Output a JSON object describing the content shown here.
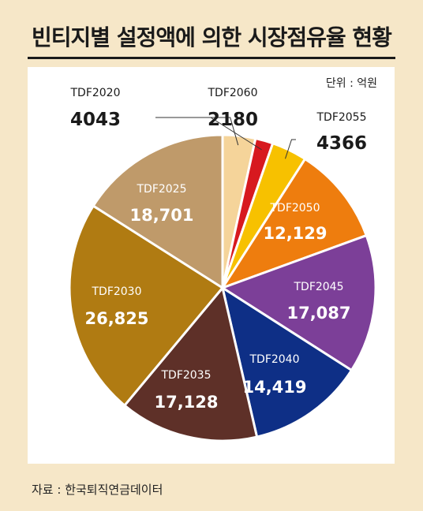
{
  "header": {
    "title": "빈티지별 설정액에 의한 시장점유율 현황"
  },
  "unit_label": "단위 : 억원",
  "source_label": "자료 : 한국퇴직연금데이터",
  "chart_data": {
    "type": "pie",
    "title": "빈티지별 설정액에 의한 시장점유율 현황",
    "unit": "단위 : 억원",
    "slices": [
      {
        "label": "TDF2020",
        "value": 4043,
        "display": "4043",
        "color": "#f5d49a"
      },
      {
        "label": "TDF2060",
        "value": 2180,
        "display": "2180",
        "color": "#d7191f"
      },
      {
        "label": "TDF2055",
        "value": 4366,
        "display": "4366",
        "color": "#f7c100"
      },
      {
        "label": "TDF2050",
        "value": 12129,
        "display": "12,129",
        "color": "#ee7d0e"
      },
      {
        "label": "TDF2045",
        "value": 17087,
        "display": "17,087",
        "color": "#7c3f98"
      },
      {
        "label": "TDF2040",
        "value": 14419,
        "display": "14,419",
        "color": "#0e2f86"
      },
      {
        "label": "TDF2035",
        "value": 17128,
        "display": "17,128",
        "color": "#5e3028"
      },
      {
        "label": "TDF2030",
        "value": 26825,
        "display": "26,825",
        "color": "#b07b12"
      },
      {
        "label": "TDF2025",
        "value": 18701,
        "display": "18,701",
        "color": "#bf9a6a"
      }
    ]
  }
}
